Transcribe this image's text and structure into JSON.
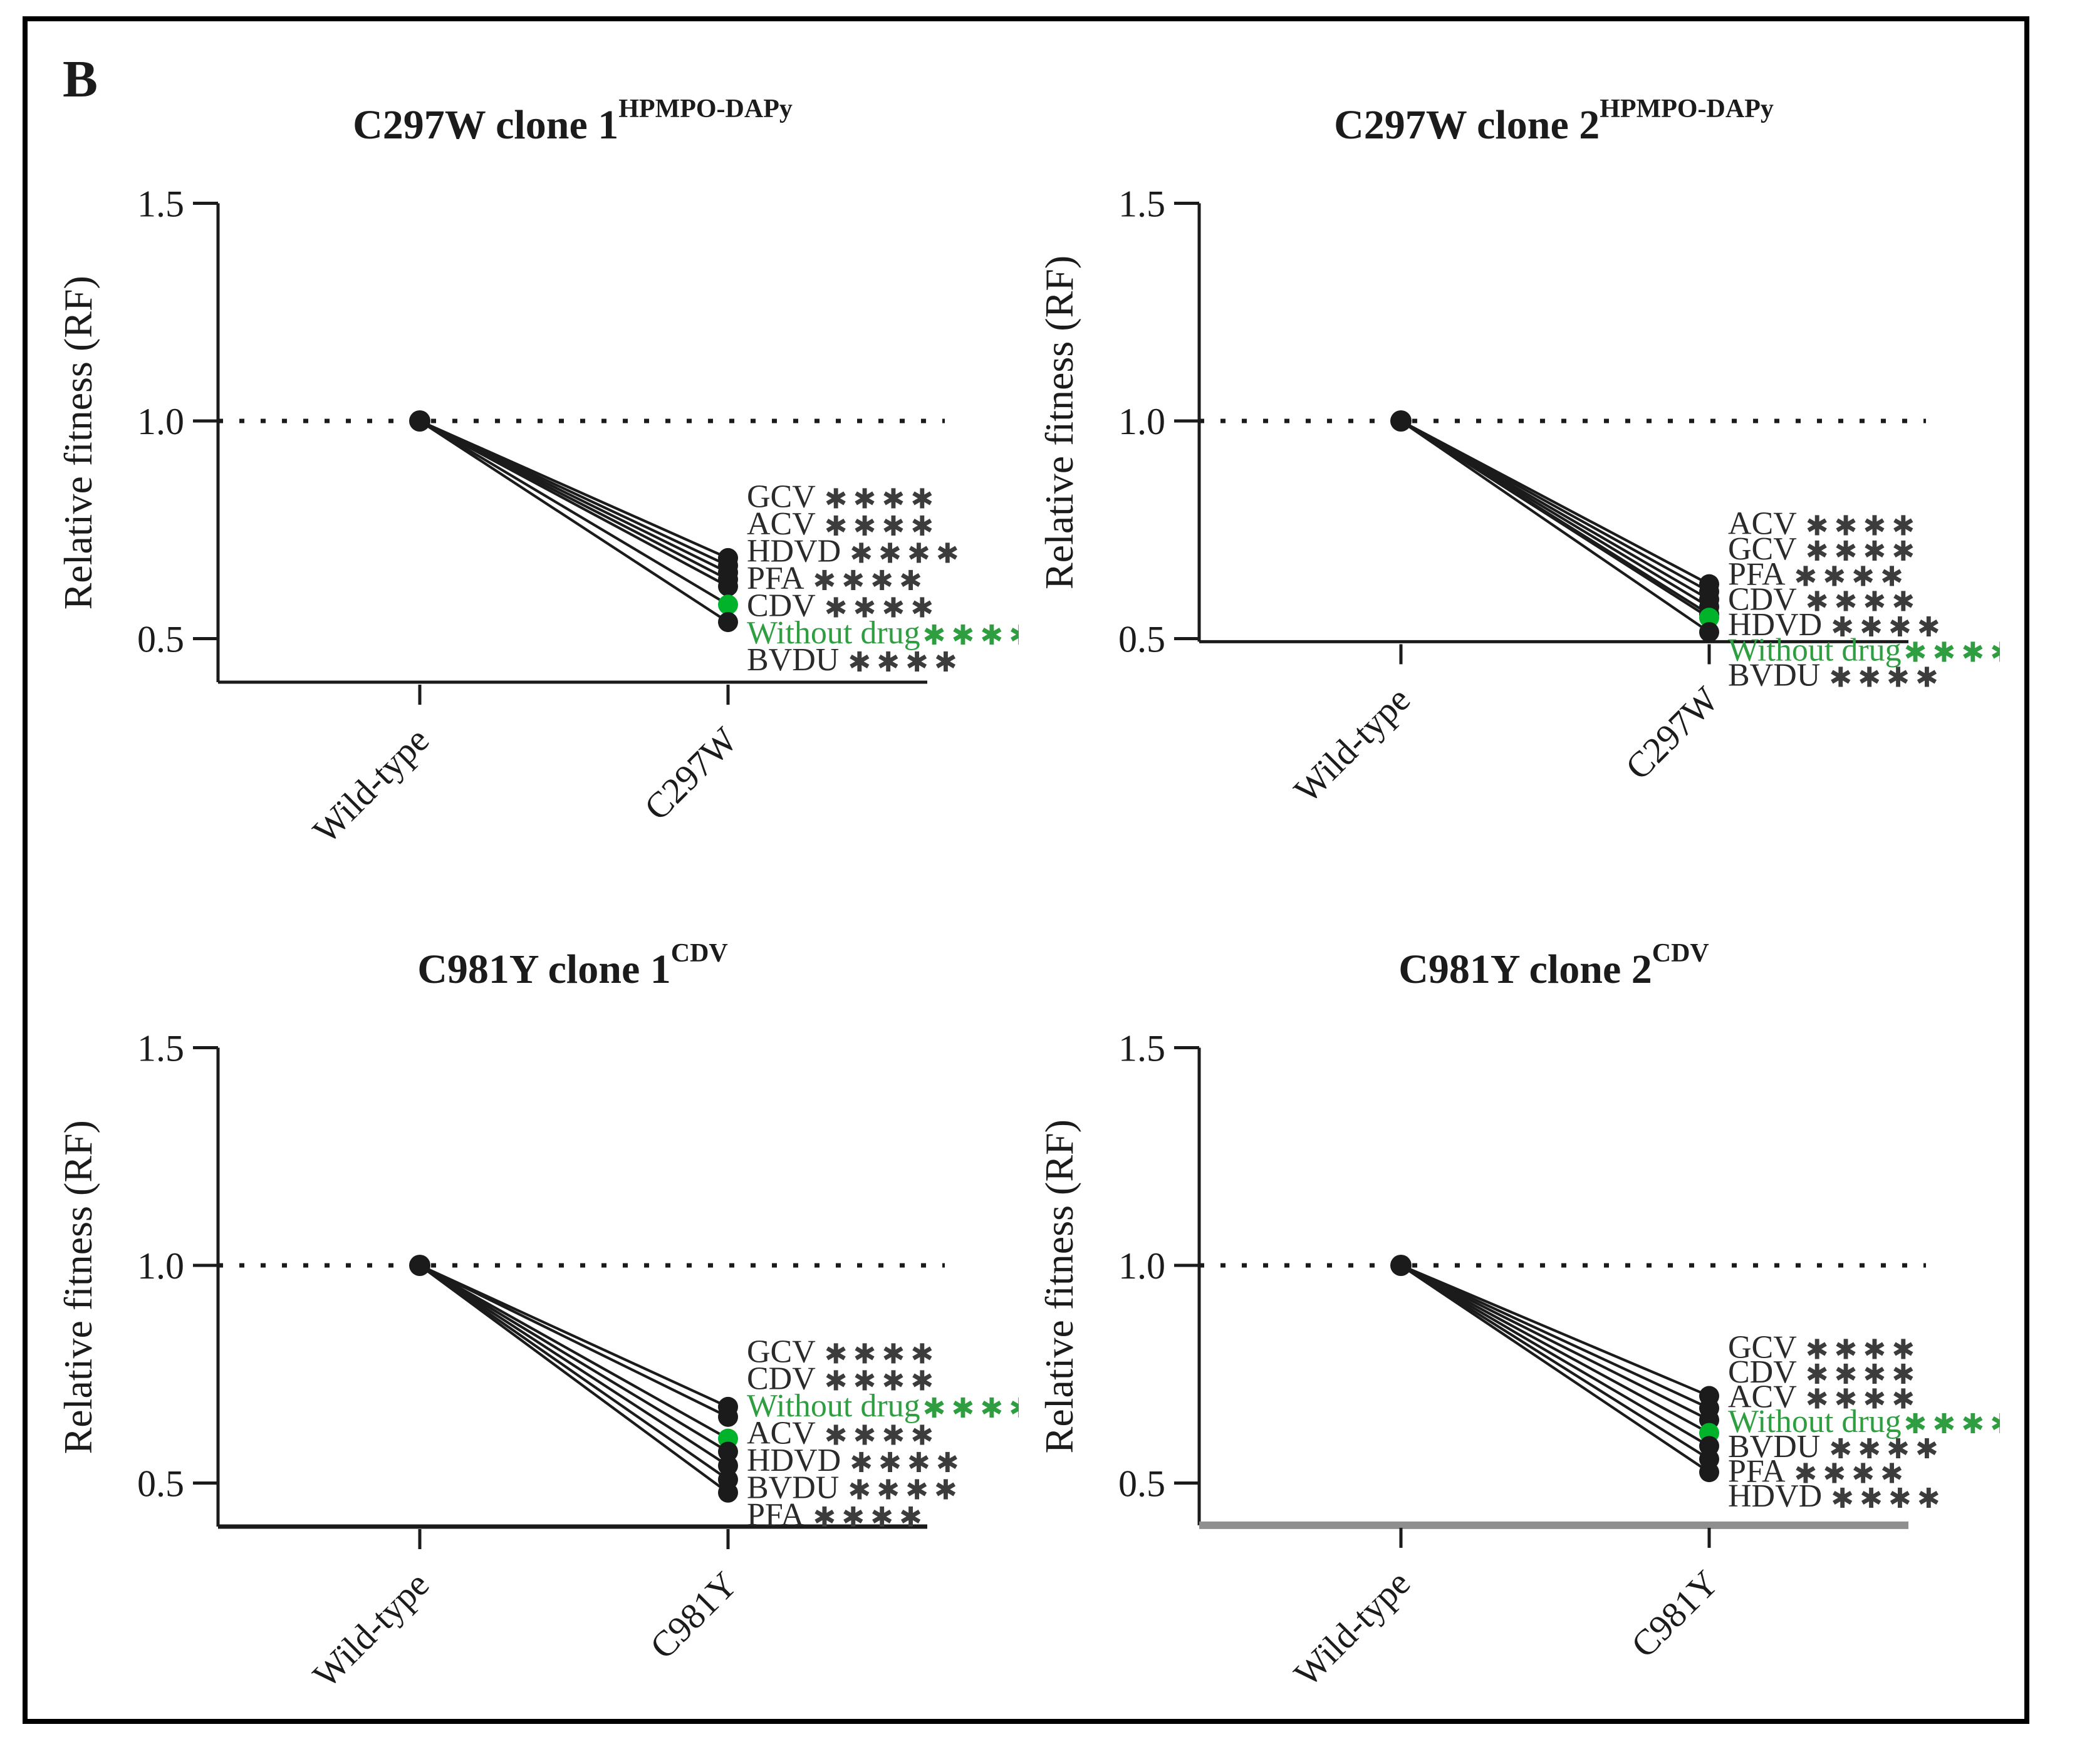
{
  "figure": {
    "panel_label": "B",
    "background": "#ffffff",
    "border_color": "#000000"
  },
  "colors": {
    "black": "#1b1b1b",
    "label_text": "#2a2a2a",
    "asterisk": "#3c3c3c",
    "green_dot": "#00b32a",
    "green_text": "#2f9e41",
    "gray_axis": "#8f8f8f"
  },
  "chart_data": [
    {
      "type": "line",
      "title_base": "C297W clone 1",
      "title_sup": "HPMPO-DAPy",
      "ylabel": "Relative fitness (RF)",
      "y_ticks": [
        0.5,
        1.0,
        1.5
      ],
      "ylim": [
        0.4,
        1.5
      ],
      "baseline": 1.0,
      "grid": "off",
      "categories": [
        "Wild-type",
        "C297W"
      ],
      "label_top": 0.802,
      "label_step": 0.0625,
      "x_axis": {
        "color_key": "black",
        "width": 5
      },
      "series": [
        {
          "name": "GCV",
          "values": [
            1.0,
            0.685
          ],
          "significance": "****",
          "color_key": "black"
        },
        {
          "name": "ACV",
          "values": [
            1.0,
            0.668
          ],
          "significance": "****",
          "color_key": "black"
        },
        {
          "name": "HDVD",
          "values": [
            1.0,
            0.652
          ],
          "significance": "****",
          "color_key": "black"
        },
        {
          "name": "PFA",
          "values": [
            1.0,
            0.636
          ],
          "significance": "****",
          "color_key": "black"
        },
        {
          "name": "CDV",
          "values": [
            1.0,
            0.62
          ],
          "significance": "****",
          "color_key": "black"
        },
        {
          "name": "Without drug",
          "values": [
            1.0,
            0.578
          ],
          "significance": "****",
          "color_key": "green"
        },
        {
          "name": "BVDU",
          "values": [
            1.0,
            0.538
          ],
          "significance": "****",
          "color_key": "black"
        }
      ]
    },
    {
      "type": "line",
      "title_base": "C297W clone 2",
      "title_sup": "HPMPO-DAPy",
      "ylabel": "Relative fitness (RF)",
      "y_ticks": [
        0.5,
        1.0,
        1.5
      ],
      "ylim": [
        0.493,
        1.5
      ],
      "baseline": 1.0,
      "grid": "off",
      "categories": [
        "Wild-type",
        "C297W"
      ],
      "label_top": 0.74,
      "label_step": 0.058,
      "x_axis": {
        "color_key": "black",
        "width": 5
      },
      "series": [
        {
          "name": "ACV",
          "values": [
            1.0,
            0.625
          ],
          "significance": "****",
          "color_key": "black"
        },
        {
          "name": "GCV",
          "values": [
            1.0,
            0.608
          ],
          "significance": "****",
          "color_key": "black"
        },
        {
          "name": "PFA",
          "values": [
            1.0,
            0.59
          ],
          "significance": "****",
          "color_key": "black"
        },
        {
          "name": "CDV",
          "values": [
            1.0,
            0.573
          ],
          "significance": "****",
          "color_key": "black"
        },
        {
          "name": "HDVD",
          "values": [
            1.0,
            0.556
          ],
          "significance": "****",
          "color_key": "black"
        },
        {
          "name": "Without drug",
          "values": [
            1.0,
            0.548
          ],
          "significance": "****",
          "color_key": "green"
        },
        {
          "name": "BVDU",
          "values": [
            1.0,
            0.515
          ],
          "significance": "****",
          "color_key": "black"
        }
      ]
    },
    {
      "type": "line",
      "title_base": "C981Y clone 1",
      "title_sup": "CDV",
      "ylabel": "Relative fitness (RF)",
      "y_ticks": [
        0.5,
        1.0,
        1.5
      ],
      "ylim": [
        0.4,
        1.5
      ],
      "baseline": 1.0,
      "grid": "off",
      "categories": [
        "Wild-type",
        "C981Y"
      ],
      "label_top": 0.778,
      "label_step": 0.0625,
      "x_axis": {
        "color_key": "black",
        "width": 7
      },
      "series": [
        {
          "name": "GCV",
          "values": [
            1.0,
            0.675
          ],
          "significance": "****",
          "color_key": "black"
        },
        {
          "name": "CDV",
          "values": [
            1.0,
            0.652
          ],
          "significance": "****",
          "color_key": "black"
        },
        {
          "name": "Without drug",
          "values": [
            1.0,
            0.602
          ],
          "significance": "****",
          "color_key": "green"
        },
        {
          "name": "ACV",
          "values": [
            1.0,
            0.572
          ],
          "significance": "****",
          "color_key": "black"
        },
        {
          "name": "HDVD",
          "values": [
            1.0,
            0.54
          ],
          "significance": "****",
          "color_key": "black"
        },
        {
          "name": "BVDU",
          "values": [
            1.0,
            0.508
          ],
          "significance": "****",
          "color_key": "black"
        },
        {
          "name": "PFA",
          "values": [
            1.0,
            0.478
          ],
          "significance": "****",
          "color_key": "black"
        }
      ]
    },
    {
      "type": "line",
      "title_base": "C981Y clone 2",
      "title_sup": "CDV",
      "ylabel": "Relative fitness (RF)",
      "y_ticks": [
        0.5,
        1.0,
        1.5
      ],
      "ylim": [
        0.403,
        1.5
      ],
      "baseline": 1.0,
      "grid": "off",
      "categories": [
        "Wild-type",
        "C981Y"
      ],
      "label_top": 0.788,
      "label_step": 0.057,
      "x_axis": {
        "color_key": "gray",
        "width": 12
      },
      "series": [
        {
          "name": "GCV",
          "values": [
            1.0,
            0.7
          ],
          "significance": "****",
          "color_key": "black"
        },
        {
          "name": "CDV",
          "values": [
            1.0,
            0.672
          ],
          "significance": "****",
          "color_key": "black"
        },
        {
          "name": "ACV",
          "values": [
            1.0,
            0.645
          ],
          "significance": "****",
          "color_key": "black"
        },
        {
          "name": "Without drug",
          "values": [
            1.0,
            0.615
          ],
          "significance": "****",
          "color_key": "green"
        },
        {
          "name": "BVDU",
          "values": [
            1.0,
            0.585
          ],
          "significance": "****",
          "color_key": "black"
        },
        {
          "name": "PFA",
          "values": [
            1.0,
            0.555
          ],
          "significance": "****",
          "color_key": "black"
        },
        {
          "name": "HDVD",
          "values": [
            1.0,
            0.525
          ],
          "significance": "****",
          "color_key": "black"
        }
      ]
    }
  ]
}
